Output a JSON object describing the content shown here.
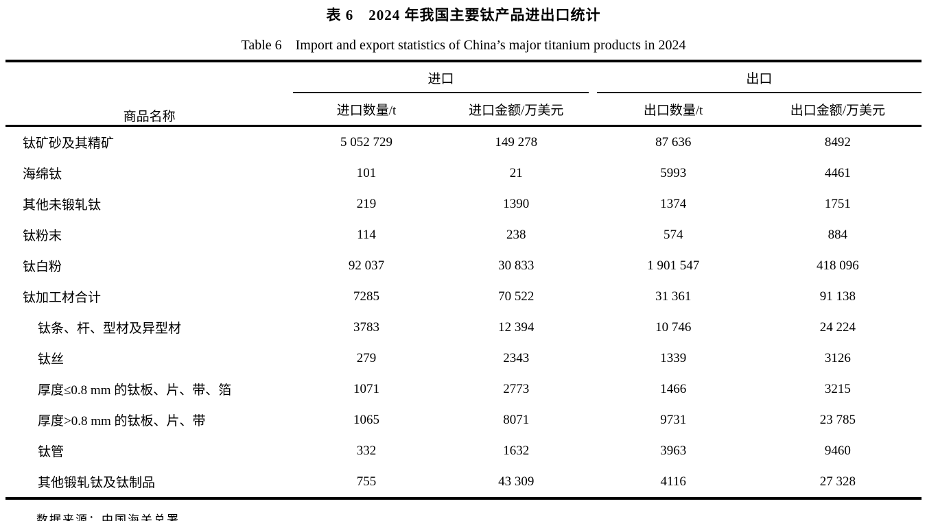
{
  "colors": {
    "text": "#000000",
    "background": "#ffffff",
    "rule": "#000000"
  },
  "titles": {
    "zh": "表 6　2024 年我国主要钛产品进出口统计",
    "en": "Table 6　Import and export statistics of China’s major titanium products in 2024"
  },
  "table": {
    "product_col_header": "商品名称",
    "group_import": "进口",
    "group_export": "出口",
    "subheaders": {
      "import_qty": "进口数量/t",
      "import_value": "进口金额/万美元",
      "export_qty": "出口数量/t",
      "export_value": "出口金额/万美元"
    },
    "rows": [
      {
        "name": "钛矿砂及其精矿",
        "indent": false,
        "values": [
          "5 052 729",
          "149 278",
          "87 636",
          "8492"
        ]
      },
      {
        "name": "海绵钛",
        "indent": false,
        "values": [
          "101",
          "21",
          "5993",
          "4461"
        ]
      },
      {
        "name": "其他未锻轧钛",
        "indent": false,
        "values": [
          "219",
          "1390",
          "1374",
          "1751"
        ]
      },
      {
        "name": "钛粉末",
        "indent": false,
        "values": [
          "114",
          "238",
          "574",
          "884"
        ]
      },
      {
        "name": "钛白粉",
        "indent": false,
        "values": [
          "92 037",
          "30 833",
          "1 901 547",
          "418 096"
        ]
      },
      {
        "name": "钛加工材合计",
        "indent": false,
        "values": [
          "7285",
          "70 522",
          "31 361",
          "91 138"
        ]
      },
      {
        "name": "钛条、杆、型材及异型材",
        "indent": true,
        "values": [
          "3783",
          "12 394",
          "10 746",
          "24 224"
        ]
      },
      {
        "name": "钛丝",
        "indent": true,
        "values": [
          "279",
          "2343",
          "1339",
          "3126"
        ]
      },
      {
        "name": "厚度≤0.8 mm 的钛板、片、带、箔",
        "indent": true,
        "values": [
          "1071",
          "2773",
          "1466",
          "3215"
        ]
      },
      {
        "name": "厚度>0.8 mm 的钛板、片、带",
        "indent": true,
        "values": [
          "1065",
          "8071",
          "9731",
          "23 785"
        ]
      },
      {
        "name": "钛管",
        "indent": true,
        "values": [
          "332",
          "1632",
          "3963",
          "9460"
        ]
      },
      {
        "name": "其他锻轧钛及钛制品",
        "indent": true,
        "values": [
          "755",
          "43 309",
          "4116",
          "27 328"
        ]
      }
    ]
  },
  "footer": {
    "source_note": "数据来源：中国海关总署。"
  }
}
